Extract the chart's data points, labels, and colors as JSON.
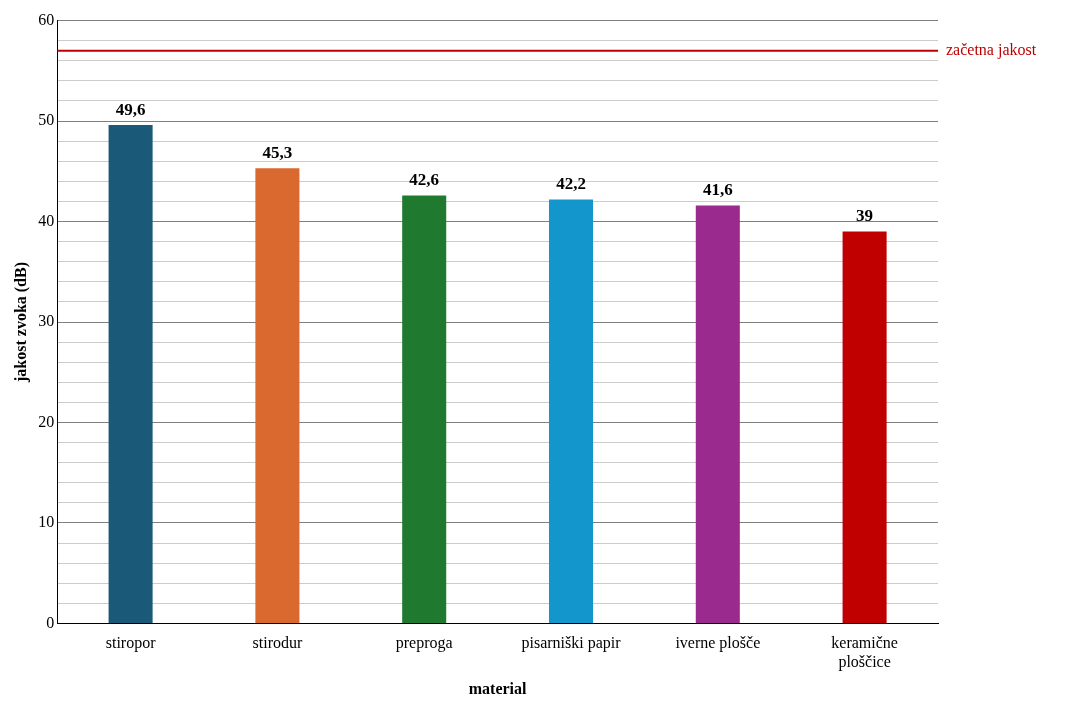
{
  "chart_data": {
    "type": "bar",
    "xlabel": "material",
    "ylabel": "jakost zvoka (dB)",
    "categories": [
      "stiropor",
      "stirodur",
      "preproga",
      "pisarniški papir",
      "iverne plošče",
      "keramične ploščice"
    ],
    "values": [
      49.6,
      45.3,
      42.6,
      42.2,
      41.6,
      39
    ],
    "colors": [
      "#1a5a78",
      "#d9692e",
      "#1f7a2f",
      "#1296cc",
      "#9a2a8e",
      "#c00000"
    ],
    "value_labels": [
      "49,6",
      "45,3",
      "42,6",
      "42,2",
      "41,6",
      "39"
    ],
    "ylim": [
      0,
      60
    ],
    "yticks": [
      0,
      {
        "value": 2,
        "label": null
      },
      {
        "value": 4,
        "label": null
      },
      {
        "value": 6,
        "label": null
      },
      {
        "value": 8,
        "label": null
      },
      10,
      {
        "value": 12,
        "label": null
      },
      {
        "value": 14,
        "label": null
      },
      {
        "value": 16,
        "label": null
      },
      {
        "value": 18,
        "label": null
      },
      20,
      {
        "value": 22,
        "label": null
      },
      {
        "value": 24,
        "label": null
      },
      {
        "value": 26,
        "label": null
      },
      {
        "value": 28,
        "label": null
      },
      30,
      {
        "value": 32,
        "label": null
      },
      {
        "value": 34,
        "label": null
      },
      {
        "value": 36,
        "label": null
      },
      {
        "value": 38,
        "label": null
      },
      40,
      {
        "value": 42,
        "label": null
      },
      {
        "value": 44,
        "label": null
      },
      {
        "value": 46,
        "label": null
      },
      {
        "value": 48,
        "label": null
      },
      50,
      {
        "value": 52,
        "label": null
      },
      {
        "value": 54,
        "label": null
      },
      {
        "value": 56,
        "label": null
      },
      {
        "value": 58,
        "label": null
      },
      60
    ],
    "grid": "y",
    "legend": false,
    "ref_lines": [
      {
        "axis": "y",
        "value": 57,
        "label": "začetna jakost",
        "color": "#c00000"
      }
    ]
  }
}
